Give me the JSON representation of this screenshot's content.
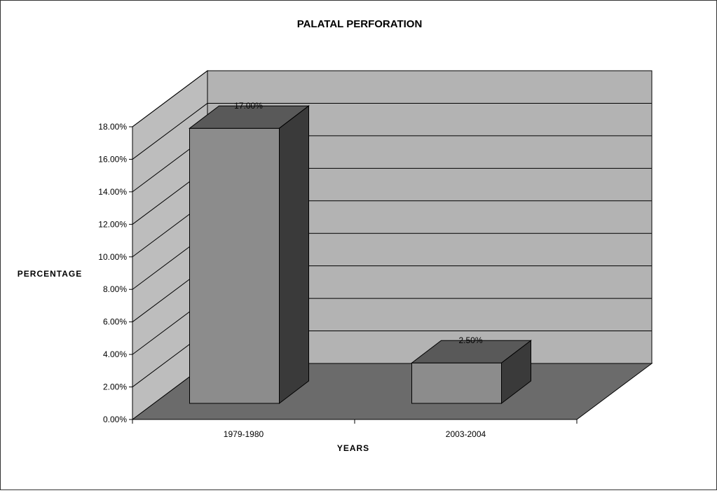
{
  "chart_data": {
    "type": "bar",
    "title": "PALATAL PERFORATION",
    "xlabel": "YEARS",
    "ylabel": "PERCENTAGE",
    "categories": [
      "1979-1980",
      "2003-2004"
    ],
    "values": [
      17.0,
      2.5
    ],
    "data_labels": [
      "17.00%",
      "2.50%"
    ],
    "ylim": [
      0,
      18
    ],
    "y_ticks": [
      "0.00%",
      "2.00%",
      "4.00%",
      "6.00%",
      "8.00%",
      "10.00%",
      "12.00%",
      "14.00%",
      "16.00%",
      "18.00%"
    ],
    "grid": true,
    "legend": "none",
    "style": "3d-column",
    "colors": {
      "back_wall": "#b3b3b3",
      "side_wall": "#bdbdbd",
      "floor": "#6b6b6b",
      "bar_front": "#8c8c8c",
      "bar_top": "#595959",
      "bar_side": "#3a3a3a"
    }
  }
}
